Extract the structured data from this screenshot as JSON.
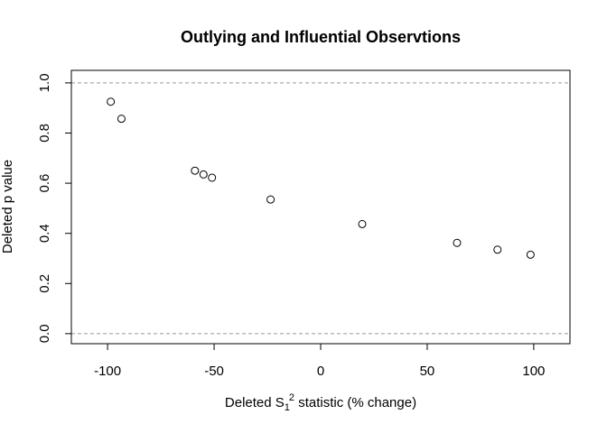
{
  "chart_data": {
    "type": "scatter",
    "title": "Outlying and Influential Observtions",
    "xlabel": {
      "prefix": "Deleted S",
      "subscript": "1",
      "superscript": "2",
      "suffix": " statistic (% change)"
    },
    "ylabel": "Deleted p value",
    "xlim": [
      -117,
      117
    ],
    "ylim": [
      -0.04,
      1.05
    ],
    "x_ticks": [
      -100,
      -50,
      0,
      50,
      100
    ],
    "x_tick_labels": [
      "-100",
      "-50",
      "0",
      "50",
      "100"
    ],
    "y_ticks": [
      0.0,
      0.2,
      0.4,
      0.6,
      0.8,
      1.0
    ],
    "y_tick_labels": [
      "0.0",
      "0.2",
      "0.4",
      "0.6",
      "0.8",
      "1.0"
    ],
    "reference_lines_y": [
      0.0,
      1.0
    ],
    "reference_line_style": "dashed",
    "reference_line_color": "#999999",
    "marker": "open-circle",
    "marker_color": "#000000",
    "grid": false,
    "points": [
      {
        "x": -98.5,
        "y": 0.925
      },
      {
        "x": -93.5,
        "y": 0.857
      },
      {
        "x": -59,
        "y": 0.65
      },
      {
        "x": -55,
        "y": 0.635
      },
      {
        "x": -51,
        "y": 0.622
      },
      {
        "x": -23.5,
        "y": 0.535
      },
      {
        "x": 19.5,
        "y": 0.437
      },
      {
        "x": 64,
        "y": 0.362
      },
      {
        "x": 83,
        "y": 0.335
      },
      {
        "x": 98.5,
        "y": 0.315
      }
    ]
  }
}
